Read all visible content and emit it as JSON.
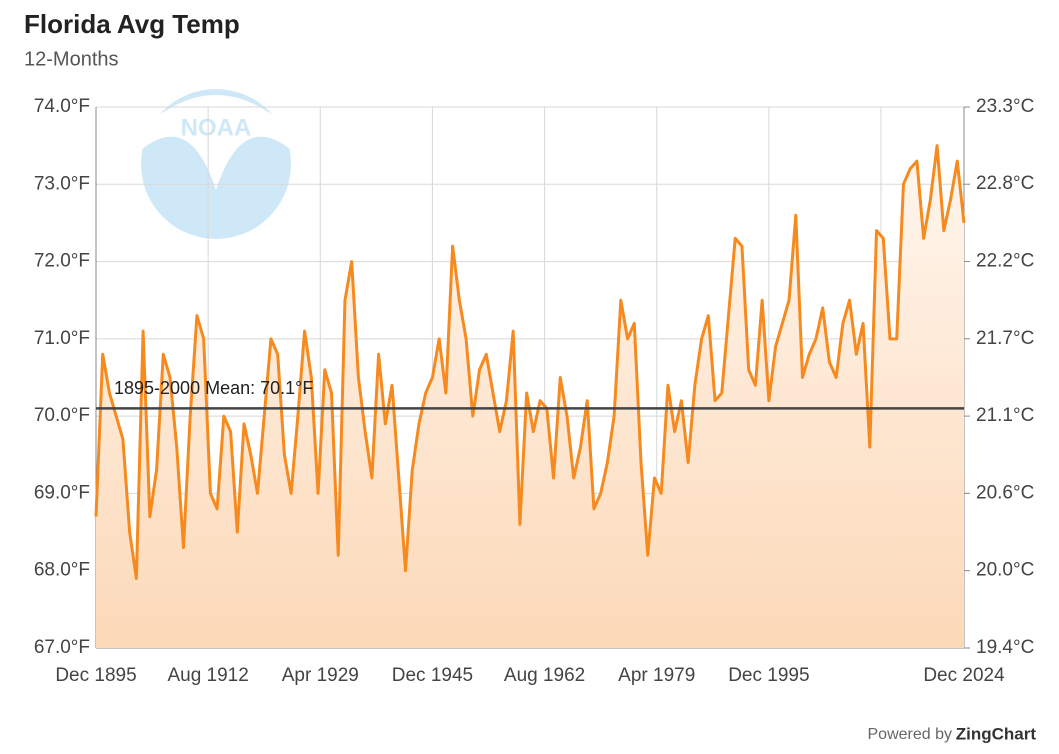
{
  "chart_data": {
    "type": "line",
    "title": "Florida Avg Temp",
    "subtitle": "12-Months",
    "logo_text": "NOAA",
    "footer_prefix": "Powered by",
    "footer_brand": "ZingChart",
    "color": "#f68a1f",
    "grid": true,
    "x": [
      "1895-12",
      "1896-12",
      "1897-12",
      "1898-12",
      "1899-12",
      "1900-12",
      "1901-12",
      "1902-12",
      "1903-12",
      "1904-12",
      "1905-12",
      "1906-12",
      "1907-12",
      "1908-12",
      "1909-12",
      "1910-12",
      "1911-12",
      "1912-12",
      "1913-12",
      "1914-12",
      "1915-12",
      "1916-12",
      "1917-12",
      "1918-12",
      "1919-12",
      "1920-12",
      "1921-12",
      "1922-12",
      "1923-12",
      "1924-12",
      "1925-12",
      "1926-12",
      "1927-12",
      "1928-12",
      "1929-12",
      "1930-12",
      "1931-12",
      "1932-12",
      "1933-12",
      "1934-12",
      "1935-12",
      "1936-12",
      "1937-12",
      "1938-12",
      "1939-12",
      "1940-12",
      "1941-12",
      "1942-12",
      "1943-12",
      "1944-12",
      "1945-12",
      "1946-12",
      "1947-12",
      "1948-12",
      "1949-12",
      "1950-12",
      "1951-12",
      "1952-12",
      "1953-12",
      "1954-12",
      "1955-12",
      "1956-12",
      "1957-12",
      "1958-12",
      "1959-12",
      "1960-12",
      "1961-12",
      "1962-12",
      "1963-12",
      "1964-12",
      "1965-12",
      "1966-12",
      "1967-12",
      "1968-12",
      "1969-12",
      "1970-12",
      "1971-12",
      "1972-12",
      "1973-12",
      "1974-12",
      "1975-12",
      "1976-12",
      "1977-12",
      "1978-12",
      "1979-12",
      "1980-12",
      "1981-12",
      "1982-12",
      "1983-12",
      "1984-12",
      "1985-12",
      "1986-12",
      "1987-12",
      "1988-12",
      "1989-12",
      "1990-12",
      "1991-12",
      "1992-12",
      "1993-12",
      "1994-12",
      "1995-12",
      "1996-12",
      "1997-12",
      "1998-12",
      "1999-12",
      "2000-12",
      "2001-12",
      "2002-12",
      "2003-12",
      "2004-12",
      "2005-12",
      "2006-12",
      "2007-12",
      "2008-12",
      "2009-12",
      "2010-12",
      "2011-12",
      "2012-12",
      "2013-12",
      "2014-12",
      "2015-12",
      "2016-12",
      "2017-12",
      "2018-12",
      "2019-12",
      "2020-12",
      "2021-12",
      "2022-12",
      "2023-12",
      "2024-12"
    ],
    "values": [
      68.7,
      70.8,
      70.3,
      70.0,
      69.7,
      68.5,
      67.9,
      71.1,
      68.7,
      69.3,
      70.8,
      70.5,
      69.6,
      68.3,
      70.0,
      71.3,
      71.0,
      69.0,
      68.8,
      70.0,
      69.8,
      68.5,
      69.9,
      69.5,
      69.0,
      70.0,
      71.0,
      70.8,
      69.5,
      69.0,
      70.0,
      71.1,
      70.5,
      69.0,
      70.6,
      70.3,
      68.2,
      71.5,
      72.0,
      70.5,
      69.8,
      69.2,
      70.8,
      69.9,
      70.4,
      69.2,
      68.0,
      69.3,
      69.9,
      70.3,
      70.5,
      71.0,
      70.3,
      72.2,
      71.5,
      71.0,
      70.0,
      70.6,
      70.8,
      70.3,
      69.8,
      70.2,
      71.1,
      68.6,
      70.3,
      69.8,
      70.2,
      70.1,
      69.2,
      70.5,
      70.0,
      69.2,
      69.6,
      70.2,
      68.8,
      69.0,
      69.4,
      70.0,
      71.5,
      71.0,
      71.2,
      69.4,
      68.2,
      69.2,
      69.0,
      70.4,
      69.8,
      70.2,
      69.4,
      70.4,
      71.0,
      71.3,
      70.2,
      70.3,
      71.3,
      72.3,
      72.2,
      70.6,
      70.4,
      71.5,
      70.2,
      70.9,
      71.2,
      71.5,
      72.6,
      70.5,
      70.8,
      71.0,
      71.4,
      70.7,
      70.5,
      71.2,
      71.5,
      70.8,
      71.2,
      69.6,
      72.4,
      72.3,
      71.0,
      71.0,
      73.0,
      73.2,
      73.3,
      72.3,
      72.8,
      73.5,
      72.4,
      72.8,
      73.3,
      72.5
    ],
    "xlim": [
      "1895-12",
      "2024-12"
    ],
    "xticks": [
      {
        "value": "1895-12",
        "label": "Dec 1895"
      },
      {
        "value": "1912-08",
        "label": "Aug 1912"
      },
      {
        "value": "1929-04",
        "label": "Apr 1929"
      },
      {
        "value": "1945-12",
        "label": "Dec 1945"
      },
      {
        "value": "1962-08",
        "label": "Aug 1962"
      },
      {
        "value": "1979-04",
        "label": "Apr 1979"
      },
      {
        "value": "1995-12",
        "label": "Dec 1995"
      },
      {
        "value": "2012-08",
        "label": null
      },
      {
        "value": "2024-12",
        "label": "Dec 2024"
      }
    ],
    "ylim": [
      67,
      74
    ],
    "yticks": [
      {
        "value": 67,
        "label": "67.0°F"
      },
      {
        "value": 68,
        "label": "68.0°F"
      },
      {
        "value": 69,
        "label": "69.0°F"
      },
      {
        "value": 70,
        "label": "70.0°F"
      },
      {
        "value": 71,
        "label": "71.0°F"
      },
      {
        "value": 72,
        "label": "72.0°F"
      },
      {
        "value": 73,
        "label": "73.0°F"
      },
      {
        "value": 74,
        "label": "74.0°F"
      }
    ],
    "y2lim": [
      19.444,
      23.333
    ],
    "y2ticks": [
      {
        "value": 19.444,
        "label": "19.4°C"
      },
      {
        "value": 20.0,
        "label": "20.0°C"
      },
      {
        "value": 20.556,
        "label": "20.6°C"
      },
      {
        "value": 21.111,
        "label": "21.1°C"
      },
      {
        "value": 21.667,
        "label": "21.7°C"
      },
      {
        "value": 22.222,
        "label": "22.2°C"
      },
      {
        "value": 22.778,
        "label": "22.8°C"
      },
      {
        "value": 23.333,
        "label": "23.3°C"
      }
    ],
    "mean_line": {
      "value": 70.1,
      "label": "1895-2000 Mean: 70.1°F"
    }
  }
}
